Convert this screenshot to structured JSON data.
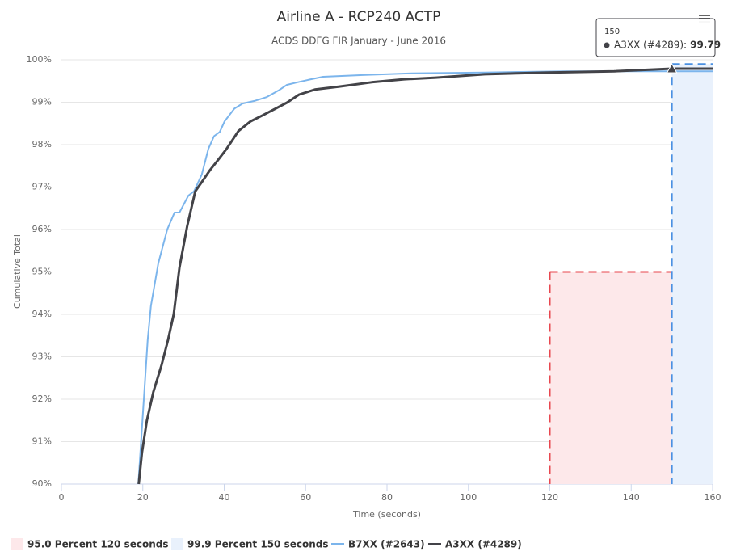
{
  "chart_data": {
    "type": "line",
    "title": "Airline A - RCP240 ACTP",
    "subtitle": "ACDS DDFG FIR January - June 2016",
    "x_label": "Time (seconds)",
    "y_label": "Cumulative Total",
    "xlim": [
      0,
      160
    ],
    "xticks": [
      0,
      20,
      40,
      60,
      80,
      100,
      120,
      140,
      160
    ],
    "ylim": [
      90,
      100
    ],
    "yticks": [
      {
        "value": 90,
        "label": "90%"
      },
      {
        "value": 91,
        "label": "91%"
      },
      {
        "value": 92,
        "label": "92%"
      },
      {
        "value": 93,
        "label": "93%"
      },
      {
        "value": 94,
        "label": "94%"
      },
      {
        "value": 95,
        "label": "95%"
      },
      {
        "value": 96,
        "label": "96%"
      },
      {
        "value": 97,
        "label": "97%"
      },
      {
        "value": 98,
        "label": "98%"
      },
      {
        "value": 99,
        "label": "99%"
      },
      {
        "value": 100,
        "label": "100%"
      }
    ],
    "grid": true,
    "bands": [
      {
        "name": "95.0 Percent 120 seconds",
        "color": "#e8474f",
        "fill": "#fde8ea",
        "x": [
          120,
          150
        ],
        "y": 95
      },
      {
        "name": "99.9 Percent 150 seconds",
        "color": "#4a90e2",
        "fill": "#e9f1fc",
        "x": [
          150,
          160
        ],
        "y": 99.9
      }
    ],
    "series": [
      {
        "name": "B7XX (#2643)",
        "color": "#7cb5ec",
        "x": [
          18.9,
          21.2,
          22,
          23.8,
          26,
          27.8,
          29,
          31.2,
          32.6,
          34.5,
          36.1,
          37.5,
          38.9,
          40.1,
          42.5,
          44.5,
          47.4,
          50.4,
          53.4,
          55.4,
          58,
          61.3,
          64.3,
          74,
          86,
          104,
          124,
          150,
          160
        ],
        "values": [
          90,
          93.4,
          94.2,
          95.2,
          96.0,
          96.4,
          96.4,
          96.8,
          96.9,
          97.3,
          97.9,
          98.2,
          98.3,
          98.55,
          98.85,
          98.97,
          99.03,
          99.12,
          99.28,
          99.41,
          99.47,
          99.54,
          99.6,
          99.64,
          99.68,
          99.7,
          99.73,
          99.73,
          99.73
        ]
      },
      {
        "name": "A3XX (#4289)",
        "color": "#434348",
        "x": [
          19,
          19.8,
          21,
          22.6,
          24.6,
          26.2,
          27.6,
          29,
          30.9,
          32.9,
          34.5,
          36.5,
          38.5,
          40.5,
          43.5,
          46.5,
          49.4,
          52.4,
          55.4,
          58.4,
          62.3,
          68.3,
          76.2,
          84.2,
          92,
          104,
          119.8,
          135.8,
          150,
          160
        ],
        "values": [
          90,
          90.74,
          91.5,
          92.17,
          92.8,
          93.4,
          94.0,
          95.1,
          96.08,
          96.9,
          97.12,
          97.4,
          97.64,
          97.89,
          98.32,
          98.55,
          98.69,
          98.84,
          98.99,
          99.18,
          99.3,
          99.37,
          99.47,
          99.54,
          99.58,
          99.66,
          99.7,
          99.73,
          99.79,
          99.79
        ]
      }
    ],
    "tooltip": {
      "x": 150,
      "label": "A3XX (#4289):",
      "value": 99.79
    }
  }
}
